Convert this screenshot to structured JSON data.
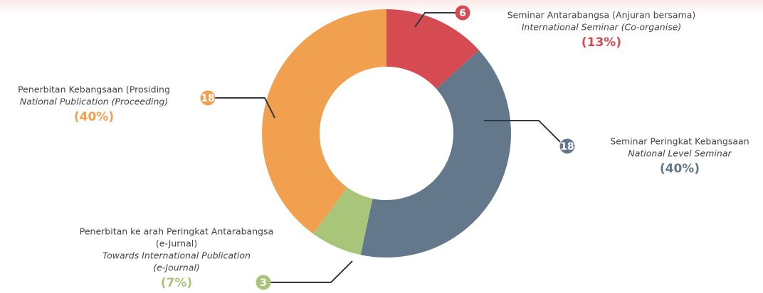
{
  "chart_data": {
    "type": "donut",
    "segments": [
      {
        "value": 6,
        "color": "#d64a52",
        "percent_label": "(13%)",
        "malay": [
          "Seminar Antarabangsa (Anjuran bersama)"
        ],
        "english": [
          "International Seminar (Co-organise)"
        ]
      },
      {
        "value": 18,
        "color": "#64788c",
        "percent_label": "(40%)",
        "malay": [
          "Seminar Peringkat Kebangsaan"
        ],
        "english": [
          "National Level Seminar"
        ]
      },
      {
        "value": 3,
        "color": "#a8c57a",
        "percent_label": "(7%)",
        "malay": [
          "Penerbitan ke arah Peringkat Antarabangsa",
          "(e-Jurnal)"
        ],
        "english": [
          "Towards International Publication",
          "(e-Journal)"
        ]
      },
      {
        "value": 18,
        "color": "#f0a04e",
        "percent_label": "(40%)",
        "malay": [
          "Penerbitan Kebangsaan (Prosiding"
        ],
        "english": [
          "National Publication (Proceeding)"
        ]
      }
    ]
  }
}
